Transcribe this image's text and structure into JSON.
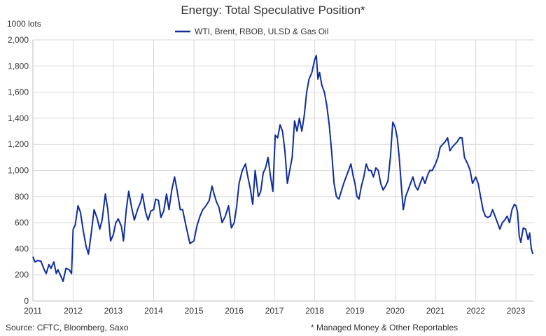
{
  "chart_data": {
    "type": "line",
    "title": "Energy: Total Speculative Position*",
    "ylabel": "1000 lots",
    "ylim": [
      0,
      2000
    ],
    "yticks": [
      0,
      200,
      400,
      600,
      800,
      1000,
      1200,
      1400,
      1600,
      1800,
      2000
    ],
    "ytick_labels": [
      "0",
      "200",
      "400",
      "600",
      "800",
      "1,000",
      "1,200",
      "1,400",
      "1,600",
      "1,800",
      "2,000"
    ],
    "xlim": [
      2011,
      2023.45
    ],
    "xticks": [
      2011,
      2012,
      2013,
      2014,
      2015,
      2016,
      2017,
      2018,
      2019,
      2020,
      2021,
      2022,
      2023
    ],
    "xtick_labels": [
      "2011",
      "2012",
      "2013",
      "2014",
      "2015",
      "2016",
      "2017",
      "2018",
      "2019",
      "2020",
      "2021",
      "2022",
      "2023"
    ],
    "grid": true,
    "legend_position": "top-center",
    "source": "Source: CFTC, Bloomberg, Saxo",
    "footnote": "* Managed Money & Other Reportables",
    "series": [
      {
        "name": "WTI, Brent, RBOB, ULSD & Gas Oil",
        "color": "#0f2d9c",
        "x": [
          2011.0,
          2011.05,
          2011.12,
          2011.2,
          2011.28,
          2011.33,
          2011.4,
          2011.45,
          2011.52,
          2011.58,
          2011.62,
          2011.68,
          2011.75,
          2011.82,
          2011.9,
          2011.96,
          2012.0,
          2012.05,
          2012.12,
          2012.18,
          2012.25,
          2012.32,
          2012.38,
          2012.45,
          2012.52,
          2012.6,
          2012.66,
          2012.72,
          2012.8,
          2012.86,
          2012.93,
          2013.0,
          2013.06,
          2013.12,
          2013.2,
          2013.25,
          2013.32,
          2013.38,
          2013.45,
          2013.52,
          2013.6,
          2013.68,
          2013.72,
          2013.8,
          2013.86,
          2013.93,
          2014.0,
          2014.05,
          2014.12,
          2014.18,
          2014.25,
          2014.32,
          2014.38,
          2014.45,
          2014.52,
          2014.58,
          2014.66,
          2014.72,
          2014.8,
          2014.9,
          2015.0,
          2015.08,
          2015.15,
          2015.22,
          2015.3,
          2015.38,
          2015.45,
          2015.5,
          2015.56,
          2015.62,
          2015.7,
          2015.78,
          2015.86,
          2015.93,
          2016.0,
          2016.06,
          2016.12,
          2016.2,
          2016.28,
          2016.34,
          2016.4,
          2016.46,
          2016.52,
          2016.6,
          2016.66,
          2016.72,
          2016.78,
          2016.84,
          2016.9,
          2016.96,
          2017.02,
          2017.08,
          2017.14,
          2017.2,
          2017.26,
          2017.32,
          2017.38,
          2017.44,
          2017.5,
          2017.56,
          2017.62,
          2017.68,
          2017.74,
          2017.8,
          2017.86,
          2017.93,
          2018.0,
          2018.04,
          2018.08,
          2018.12,
          2018.18,
          2018.24,
          2018.3,
          2018.36,
          2018.42,
          2018.48,
          2018.54,
          2018.6,
          2018.66,
          2018.72,
          2018.78,
          2018.84,
          2018.9,
          2018.96,
          2019.0,
          2019.05,
          2019.1,
          2019.16,
          2019.22,
          2019.28,
          2019.34,
          2019.4,
          2019.46,
          2019.52,
          2019.58,
          2019.64,
          2019.7,
          2019.76,
          2019.82,
          2019.88,
          2019.94,
          2020.0,
          2020.05,
          2020.1,
          2020.16,
          2020.2,
          2020.26,
          2020.32,
          2020.38,
          2020.44,
          2020.5,
          2020.56,
          2020.62,
          2020.68,
          2020.74,
          2020.8,
          2020.86,
          2020.92,
          2021.0,
          2021.06,
          2021.12,
          2021.18,
          2021.24,
          2021.3,
          2021.36,
          2021.42,
          2021.48,
          2021.54,
          2021.6,
          2021.66,
          2021.72,
          2021.8,
          2021.86,
          2021.92,
          2022.0,
          2022.06,
          2022.12,
          2022.18,
          2022.24,
          2022.3,
          2022.36,
          2022.42,
          2022.48,
          2022.54,
          2022.6,
          2022.66,
          2022.72,
          2022.78,
          2022.84,
          2022.9,
          2022.96,
          2023.0,
          2023.04,
          2023.08,
          2023.12,
          2023.18,
          2023.24,
          2023.3,
          2023.34,
          2023.38,
          2023.42
        ],
        "y": [
          340,
          300,
          310,
          305,
          240,
          210,
          280,
          250,
          300,
          210,
          240,
          200,
          150,
          250,
          240,
          210,
          550,
          580,
          730,
          680,
          540,
          420,
          360,
          520,
          700,
          630,
          550,
          620,
          820,
          700,
          460,
          510,
          600,
          630,
          570,
          460,
          700,
          840,
          720,
          620,
          700,
          760,
          820,
          680,
          620,
          690,
          700,
          780,
          770,
          640,
          690,
          820,
          700,
          850,
          950,
          850,
          700,
          700,
          580,
          440,
          460,
          580,
          650,
          700,
          730,
          770,
          880,
          820,
          760,
          720,
          600,
          650,
          730,
          560,
          600,
          720,
          900,
          1000,
          1050,
          950,
          860,
          740,
          1000,
          800,
          840,
          980,
          1020,
          1100,
          960,
          840,
          1270,
          1250,
          1350,
          1300,
          1150,
          900,
          1000,
          1100,
          1380,
          1300,
          1400,
          1300,
          1420,
          1600,
          1700,
          1750,
          1850,
          1880,
          1700,
          1750,
          1650,
          1600,
          1500,
          1350,
          1150,
          900,
          800,
          780,
          840,
          900,
          950,
          1000,
          1050,
          950,
          900,
          800,
          780,
          880,
          950,
          1050,
          1000,
          1000,
          950,
          1020,
          1000,
          900,
          850,
          880,
          920,
          1100,
          1370,
          1330,
          1250,
          1100,
          850,
          700,
          800,
          850,
          900,
          950,
          880,
          850,
          900,
          950,
          900,
          960,
          1000,
          1000,
          1050,
          1100,
          1180,
          1200,
          1220,
          1250,
          1150,
          1180,
          1200,
          1220,
          1250,
          1250,
          1100,
          1050,
          1000,
          900,
          950,
          900,
          800,
          700,
          650,
          640,
          650,
          700,
          650,
          600,
          550,
          600,
          620,
          650,
          600,
          700,
          740,
          730,
          680,
          500,
          450,
          560,
          550,
          470,
          520,
          400,
          360
        ]
      }
    ]
  }
}
